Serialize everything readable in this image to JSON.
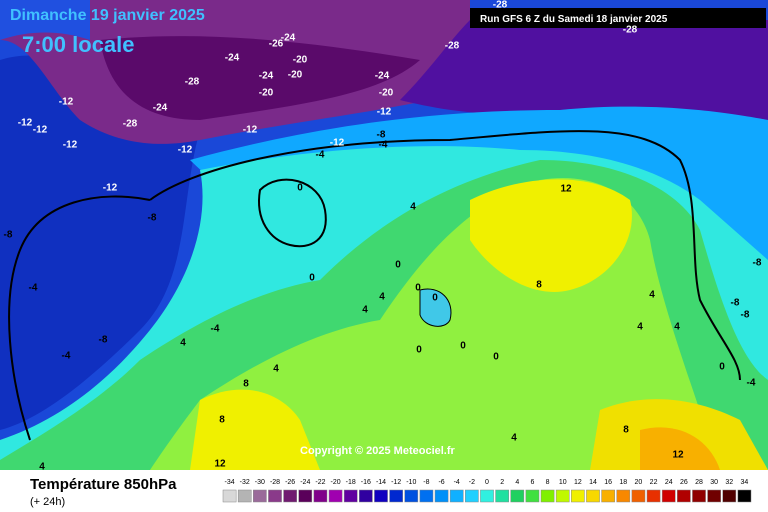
{
  "header": {
    "title": "Dimanche 19 janvier 2025",
    "time": "7:00 locale",
    "run": "Run GFS 6 Z du Samedi 18 janvier 2025"
  },
  "copyright": "Copyright © 2025 Meteociel.fr",
  "footer": {
    "variable": "Température 850hPa",
    "lead": "(+ 24h)"
  },
  "legend": {
    "labels": [
      -34,
      -32,
      -30,
      -28,
      -26,
      -24,
      -22,
      -20,
      -18,
      -16,
      -14,
      -12,
      -10,
      -8,
      -6,
      -4,
      -2,
      0,
      2,
      4,
      6,
      8,
      10,
      12,
      14,
      16,
      18,
      20,
      22,
      24,
      26,
      28,
      30,
      32,
      34
    ],
    "colors": [
      "#d8d8d8",
      "#b4b4b4",
      "#9a6a9a",
      "#8a3a8a",
      "#701a70",
      "#5a005a",
      "#80008a",
      "#a000b0",
      "#6000a0",
      "#3000a0",
      "#1000c0",
      "#0028d0",
      "#0050e0",
      "#0070f0",
      "#0090f8",
      "#10b0ff",
      "#20d0ff",
      "#30f0e0",
      "#20e0a0",
      "#20d060",
      "#40e040",
      "#80f000",
      "#c0f800",
      "#f0f000",
      "#f8d800",
      "#f8b000",
      "#f88800",
      "#f06000",
      "#e83000",
      "#d00000",
      "#b00000",
      "#900000",
      "#700000",
      "#500000",
      "#000000"
    ]
  },
  "map": {
    "contour_labels": [
      -12,
      -12,
      -12,
      -12,
      -12,
      -8,
      -8,
      -4,
      -4,
      -8,
      -4,
      4,
      4,
      8,
      8,
      12,
      4,
      0,
      0,
      4,
      4,
      4,
      0,
      0,
      0,
      0,
      0,
      0,
      12,
      8,
      4,
      4,
      4,
      -8,
      -8,
      -8,
      0,
      -4,
      12,
      8,
      4,
      -24,
      -28,
      -24,
      -24,
      -20,
      -20,
      -20,
      -24,
      -20,
      -12,
      -8,
      -4,
      -12,
      -12,
      -12,
      -4,
      -28,
      -28,
      -28,
      -28,
      -26,
      -24
    ]
  }
}
